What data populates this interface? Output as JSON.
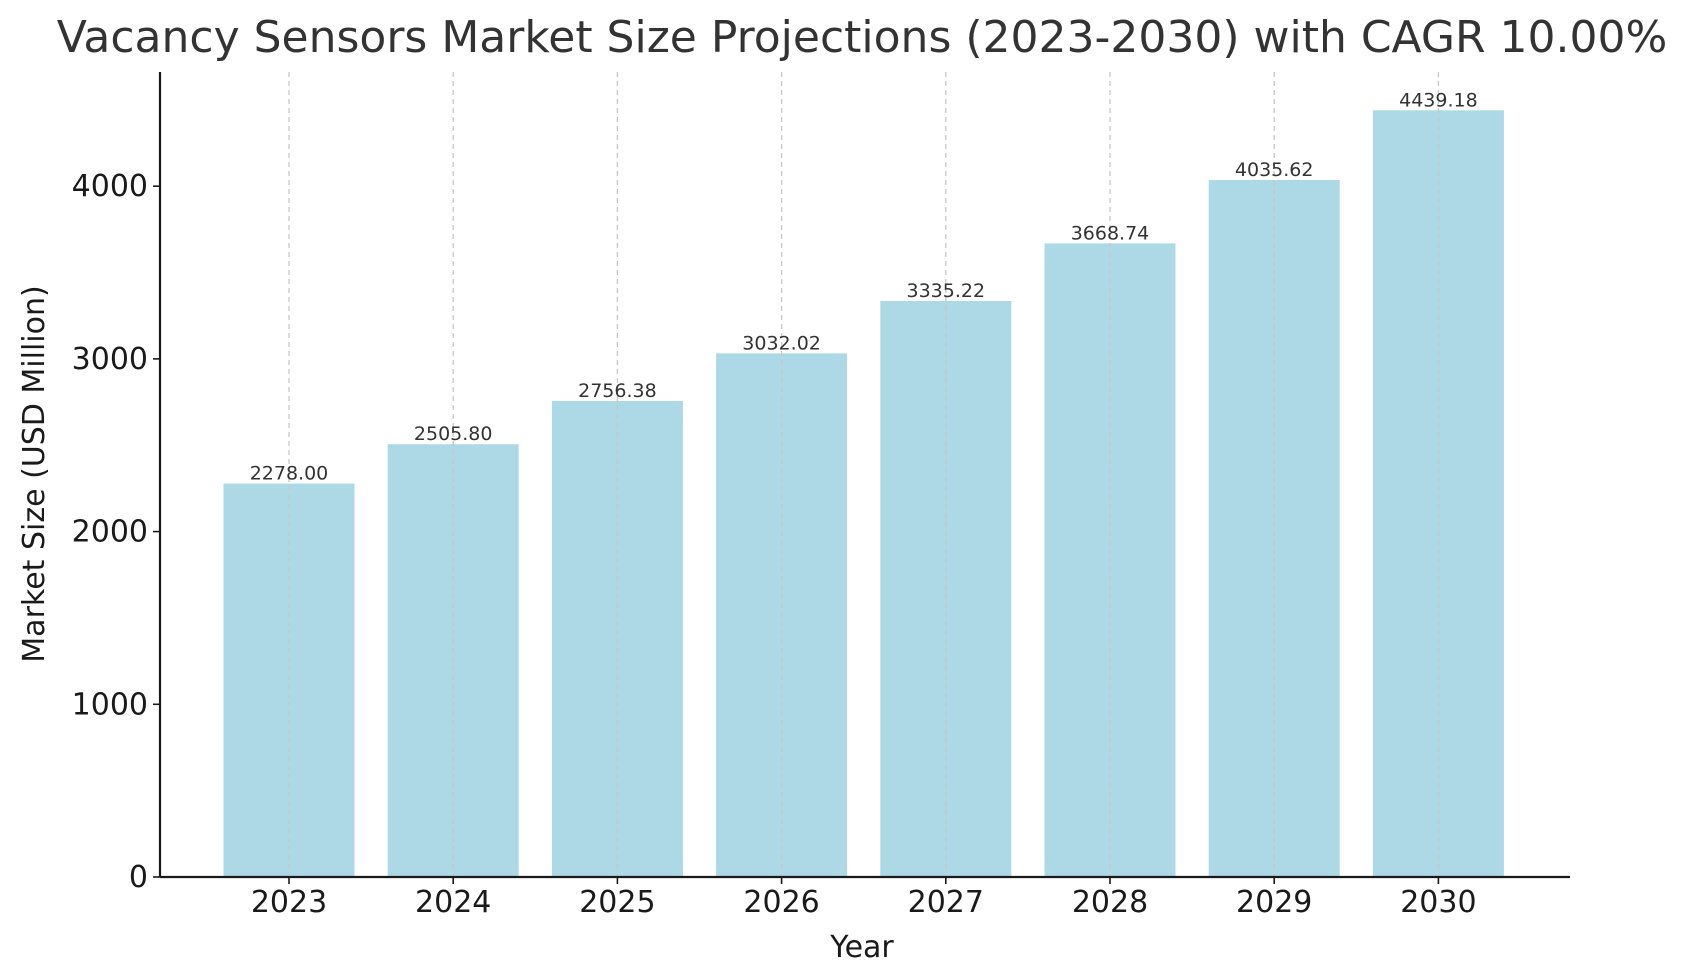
{
  "chart_data": {
    "type": "bar",
    "title": "Vacancy Sensors Market Size Projections (2023-2030) with CAGR 10.00%",
    "xlabel": "Year",
    "ylabel": "Market Size (USD Million)",
    "categories": [
      "2023",
      "2024",
      "2025",
      "2026",
      "2027",
      "2028",
      "2029",
      "2030"
    ],
    "values": [
      2278.0,
      2505.8,
      2756.38,
      3032.02,
      3335.22,
      3668.74,
      4035.62,
      4439.18
    ],
    "value_labels": [
      "2278.00",
      "2505.80",
      "2756.38",
      "3032.02",
      "3335.22",
      "3668.74",
      "4035.62",
      "4439.18"
    ],
    "yticks": [
      0,
      1000,
      2000,
      3000,
      4000
    ],
    "ylim": [
      0,
      4661
    ],
    "grid": "vertical dashed",
    "legend": "none",
    "colors": {
      "bar": "#add8e6",
      "grid": "#c8c8c8",
      "axis": "#1a1a1a",
      "title": "#333333"
    }
  }
}
